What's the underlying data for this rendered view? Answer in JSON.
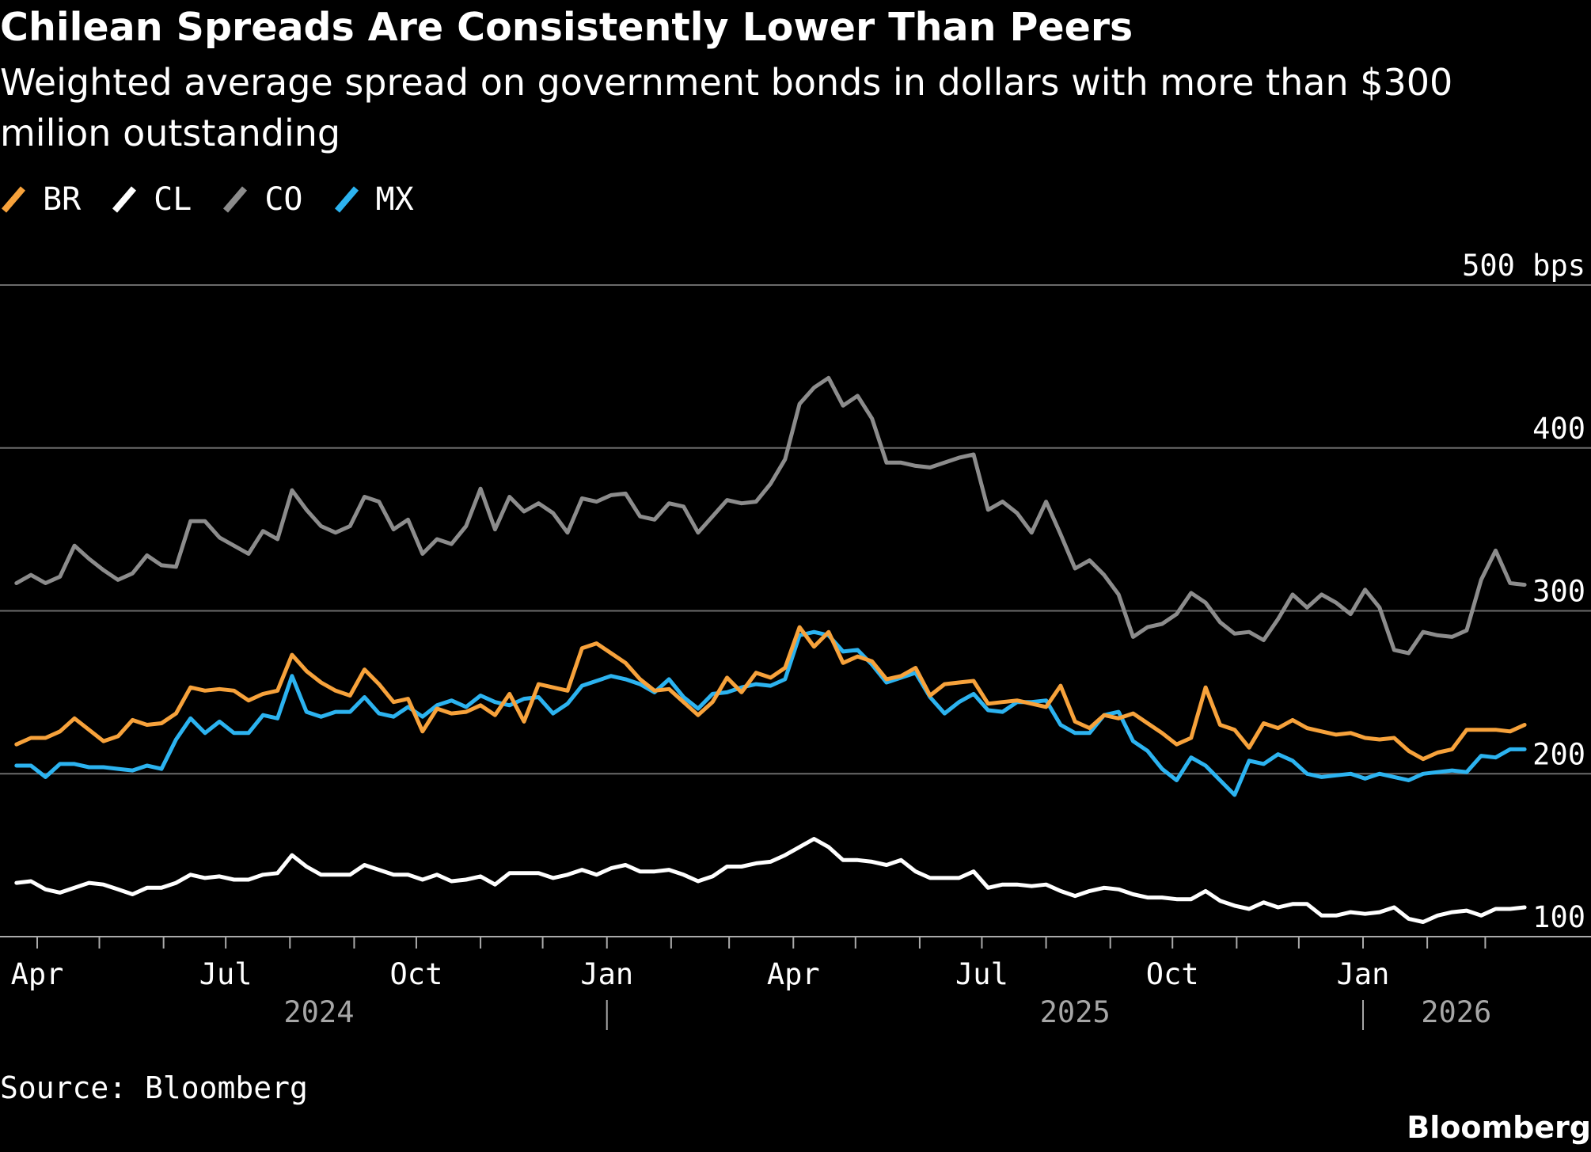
{
  "title": "Chilean Spreads Are Consistently Lower Than Peers",
  "subtitle": "Weighted average spread on government bonds in dollars with more than $300 milion outstanding",
  "source": "Source: Bloomberg",
  "brand": "Bloomberg",
  "legend": [
    {
      "label": "BR",
      "color": "#f7a23b"
    },
    {
      "label": "CL",
      "color": "#ffffff"
    },
    {
      "label": "CO",
      "color": "#8c8c8c"
    },
    {
      "label": "MX",
      "color": "#2cb3f0"
    }
  ],
  "chart_data": {
    "type": "line",
    "title": "Chilean Spreads Are Consistently Lower Than Peers",
    "ylabel": "bps",
    "ylim": [
      100,
      500
    ],
    "yticks": [
      100,
      200,
      300,
      400,
      500
    ],
    "ytick_labels": [
      "100",
      "200",
      "300",
      "400",
      "500 bps"
    ],
    "x_start": "2024-03-22",
    "x_interval": "weekly",
    "month_ticks": [
      {
        "date": "2024-04-01",
        "label": "Apr"
      },
      {
        "date": "2024-05-01",
        "label": ""
      },
      {
        "date": "2024-06-01",
        "label": ""
      },
      {
        "date": "2024-07-01",
        "label": "Jul"
      },
      {
        "date": "2024-08-01",
        "label": ""
      },
      {
        "date": "2024-09-01",
        "label": ""
      },
      {
        "date": "2024-10-01",
        "label": "Oct"
      },
      {
        "date": "2024-11-01",
        "label": ""
      },
      {
        "date": "2024-12-01",
        "label": ""
      },
      {
        "date": "2025-01-01",
        "label": "Jan"
      },
      {
        "date": "2025-02-01",
        "label": ""
      },
      {
        "date": "2025-03-01",
        "label": ""
      },
      {
        "date": "2025-04-01",
        "label": "Apr"
      },
      {
        "date": "2025-05-01",
        "label": ""
      },
      {
        "date": "2025-06-01",
        "label": ""
      },
      {
        "date": "2025-07-01",
        "label": "Jul"
      },
      {
        "date": "2025-08-01",
        "label": ""
      },
      {
        "date": "2025-09-01",
        "label": ""
      },
      {
        "date": "2025-10-01",
        "label": "Oct"
      },
      {
        "date": "2025-11-01",
        "label": ""
      },
      {
        "date": "2025-12-01",
        "label": ""
      },
      {
        "date": "2026-01-01",
        "label": "Jan"
      },
      {
        "date": "2026-02-01",
        "label": ""
      },
      {
        "date": "2026-03-01",
        "label": ""
      }
    ],
    "year_labels": [
      {
        "date": "2024-08-15",
        "label": "2024"
      },
      {
        "date": "2025-08-15",
        "label": "2025"
      },
      {
        "date": "2026-02-15",
        "label": "2026"
      }
    ],
    "year_dividers": [
      "2025-01-01",
      "2026-01-01"
    ],
    "series": [
      {
        "name": "BR",
        "color": "#f7a23b",
        "values": [
          218,
          222,
          222,
          226,
          234,
          227,
          220,
          223,
          233,
          230,
          231,
          237,
          253,
          251,
          252,
          251,
          245,
          249,
          251,
          273,
          263,
          256,
          251,
          248,
          264,
          255,
          244,
          246,
          226,
          240,
          237,
          238,
          242,
          236,
          249,
          232,
          255,
          253,
          251,
          277,
          280,
          274,
          268,
          258,
          251,
          252,
          244,
          236,
          244,
          259,
          250,
          262,
          259,
          265,
          290,
          278,
          287,
          268,
          272,
          269,
          258,
          260,
          265,
          248,
          255,
          256,
          257,
          243,
          244,
          245,
          243,
          241,
          254,
          232,
          228,
          236,
          234,
          237,
          231,
          225,
          218,
          222,
          253,
          230,
          227,
          216,
          231,
          228,
          233,
          228,
          226,
          224,
          225,
          222,
          221,
          222,
          214,
          209,
          213,
          215,
          227,
          227,
          227,
          226,
          230
        ]
      },
      {
        "name": "CL",
        "color": "#ffffff",
        "values": [
          133,
          134,
          129,
          127,
          130,
          133,
          132,
          129,
          126,
          130,
          130,
          133,
          138,
          136,
          137,
          135,
          135,
          138,
          139,
          150,
          143,
          138,
          138,
          138,
          144,
          141,
          138,
          138,
          135,
          138,
          134,
          135,
          137,
          132,
          139,
          139,
          139,
          136,
          138,
          141,
          138,
          142,
          144,
          140,
          140,
          141,
          138,
          134,
          137,
          143,
          143,
          145,
          146,
          150,
          155,
          160,
          155,
          147,
          147,
          146,
          144,
          147,
          140,
          136,
          136,
          136,
          140,
          130,
          132,
          132,
          131,
          132,
          128,
          125,
          128,
          130,
          129,
          126,
          124,
          124,
          123,
          123,
          128,
          122,
          119,
          117,
          121,
          118,
          120,
          120,
          113,
          113,
          115,
          114,
          115,
          118,
          111,
          109,
          113,
          115,
          116,
          113,
          117,
          117,
          118
        ]
      },
      {
        "name": "CO",
        "color": "#8c8c8c",
        "values": [
          317,
          322,
          317,
          321,
          340,
          332,
          325,
          319,
          323,
          334,
          328,
          327,
          355,
          355,
          345,
          340,
          335,
          349,
          344,
          374,
          362,
          352,
          348,
          352,
          370,
          367,
          350,
          356,
          335,
          344,
          341,
          352,
          375,
          350,
          370,
          361,
          366,
          360,
          348,
          369,
          367,
          371,
          372,
          358,
          356,
          366,
          364,
          348,
          358,
          368,
          366,
          367,
          378,
          393,
          427,
          437,
          443,
          426,
          432,
          418,
          391,
          391,
          389,
          388,
          391,
          394,
          396,
          362,
          367,
          360,
          348,
          367,
          347,
          326,
          331,
          322,
          310,
          284,
          290,
          292,
          298,
          311,
          305,
          293,
          286,
          287,
          282,
          295,
          310,
          302,
          310,
          305,
          298,
          313,
          302,
          276,
          274,
          287,
          285,
          284,
          288,
          319,
          337,
          317,
          316
        ]
      },
      {
        "name": "MX",
        "color": "#2cb3f0",
        "values": [
          205,
          205,
          198,
          206,
          206,
          204,
          204,
          203,
          202,
          205,
          203,
          221,
          234,
          225,
          232,
          225,
          225,
          236,
          234,
          260,
          238,
          235,
          238,
          238,
          247,
          237,
          235,
          241,
          235,
          242,
          245,
          241,
          248,
          244,
          242,
          246,
          247,
          237,
          243,
          254,
          257,
          260,
          258,
          255,
          250,
          258,
          247,
          240,
          249,
          250,
          253,
          255,
          254,
          258,
          285,
          287,
          285,
          275,
          276,
          267,
          256,
          259,
          262,
          247,
          237,
          244,
          249,
          239,
          238,
          244,
          244,
          245,
          230,
          225,
          225,
          236,
          238,
          220,
          214,
          203,
          196,
          210,
          205,
          196,
          187,
          208,
          206,
          212,
          208,
          200,
          198,
          199,
          200,
          197,
          200,
          198,
          196,
          200,
          201,
          202,
          201,
          211,
          210,
          215,
          215
        ]
      }
    ]
  }
}
